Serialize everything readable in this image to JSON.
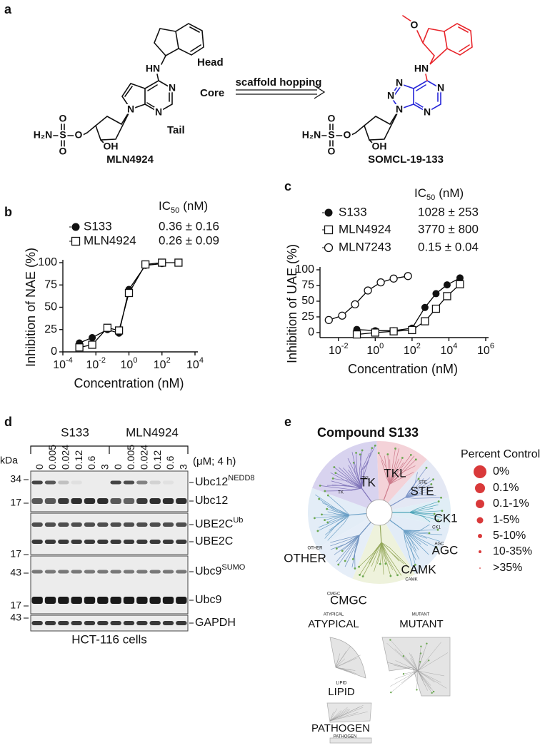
{
  "panel_labels": [
    "a",
    "b",
    "c",
    "d",
    "e"
  ],
  "scheme": {
    "regions": {
      "head": "Head",
      "core": "Core",
      "tail": "Tail"
    },
    "arrow_label": "scaffold hopping",
    "left": {
      "name": "MLN4924",
      "atoms": [
        "HN",
        "N",
        "N",
        "N",
        "O",
        "S",
        "O",
        "O",
        "H₂N",
        "OH"
      ]
    },
    "right": {
      "name": "SOMCL-19-133",
      "atoms": [
        "O",
        "HN",
        "N",
        "N",
        "N",
        "N",
        "N",
        "O",
        "S",
        "O",
        "O",
        "H₂N",
        "OH"
      ]
    }
  },
  "chart_data": [
    {
      "type": "scatter",
      "x_label": "Concentration (nM)",
      "y_label": "Inhibition of NAE (%)",
      "legend_title": {
        "text": "IC",
        "sub": "50",
        "suffix": "(nM)"
      },
      "xscale": "log",
      "xlim": [
        0.0001,
        10000
      ],
      "xticks": [
        {
          "value": 0.0001,
          "label": "10-4"
        },
        {
          "value": 0.01,
          "label": "10-2"
        },
        {
          "value": 1,
          "label": "100"
        },
        {
          "value": 100,
          "label": "102"
        },
        {
          "value": 10000,
          "label": "104"
        }
      ],
      "ylim": [
        0,
        100
      ],
      "yticks": [
        0,
        25,
        50,
        75,
        100
      ],
      "series": [
        {
          "name": "S133",
          "ic50": "0.36 ± 0.16",
          "marker": "filled-circle",
          "color": "#000000",
          "x": [
            0.001,
            0.006,
            0.05,
            0.25,
            1,
            10,
            100
          ],
          "values": [
            10,
            16,
            25,
            21,
            70,
            97,
            99
          ]
        },
        {
          "name": "MLN4924",
          "ic50": "0.26 ± 0.09",
          "marker": "open-square",
          "color": "#000000",
          "x": [
            0.001,
            0.006,
            0.05,
            0.25,
            1,
            10,
            100,
            1000
          ],
          "values": [
            5,
            8,
            27,
            24,
            66,
            98,
            100,
            100
          ]
        }
      ]
    },
    {
      "type": "scatter",
      "x_label": "Concentration (nM)",
      "y_label": "Inhibition of UAE (%)",
      "legend_title": {
        "text": "IC",
        "sub": "50",
        "suffix": "(nM)"
      },
      "xscale": "log",
      "xlim": [
        0.001,
        1000000
      ],
      "xticks": [
        {
          "value": 0.01,
          "label": "10-2"
        },
        {
          "value": 1,
          "label": "100"
        },
        {
          "value": 100,
          "label": "102"
        },
        {
          "value": 10000,
          "label": "104"
        },
        {
          "value": 1000000,
          "label": "106"
        }
      ],
      "ylim": [
        -8,
        100
      ],
      "yticks": [
        0,
        25,
        50,
        75,
        100
      ],
      "series": [
        {
          "name": "S133",
          "ic50": "1028 ± 253",
          "marker": "filled-circle",
          "color": "#000000",
          "x": [
            0.1,
            1,
            10,
            100,
            500,
            2000,
            8000,
            40000
          ],
          "values": [
            5,
            3,
            3,
            7,
            40,
            62,
            76,
            87
          ]
        },
        {
          "name": "MLN4924",
          "ic50": "3770 ± 800",
          "marker": "open-square",
          "color": "#000000",
          "x": [
            0.1,
            1,
            10,
            100,
            500,
            2000,
            8000,
            40000
          ],
          "values": [
            -3,
            0,
            2,
            4,
            18,
            38,
            58,
            77
          ]
        },
        {
          "name": "MLN7243",
          "ic50": "0.15 ± 0.04",
          "marker": "open-circle",
          "color": "#000000",
          "x": [
            0.003,
            0.016,
            0.08,
            0.4,
            2,
            10,
            60
          ],
          "values": [
            20,
            27,
            45,
            67,
            80,
            86,
            90
          ]
        }
      ]
    }
  ],
  "blot": {
    "groups": [
      "S133",
      "MLN4924"
    ],
    "doses": [
      "0",
      "0.005",
      "0.024",
      "0.12",
      "0.6",
      "3"
    ],
    "dose_unit": "(μM; 4 h)",
    "kda_label": "kDa",
    "markers": [
      "34",
      "17",
      "17",
      "43",
      "17",
      "43"
    ],
    "bands": [
      {
        "text": "Ubc12",
        "sup": "NEDD8"
      },
      {
        "text": "Ubc12"
      },
      {
        "text": "UBE2C",
        "sup": "Ub"
      },
      {
        "text": "UBE2C"
      },
      {
        "text": "Ubc9",
        "sup": "SUMO"
      },
      {
        "text": "Ubc9"
      },
      {
        "text": "GAPDH"
      }
    ],
    "cell_line": "HCT-116 cells"
  },
  "kinome": {
    "title": "Compound S133",
    "groups": [
      {
        "label": "TK",
        "small": "TK"
      },
      {
        "label": "TKL",
        "small": "TKL"
      },
      {
        "label": "STE",
        "small": "STE"
      },
      {
        "label": "CK1",
        "small": "CK1"
      },
      {
        "label": "AGC",
        "small": "AGC"
      },
      {
        "label": "CAMK",
        "small": "CAMK"
      },
      {
        "label": "CMGC",
        "small": "CMGC"
      },
      {
        "label": "OTHER",
        "small": "OTHER"
      }
    ],
    "others": [
      {
        "label": "ATYPICAL",
        "small": "ATYPICAL"
      },
      {
        "label": "MUTANT",
        "small": "MUTANT"
      },
      {
        "label": "LIPID",
        "small": "LIPID"
      },
      {
        "label": "PATHOGEN",
        "small": "PATHOGEN"
      }
    ],
    "legend_title": "Percent Control",
    "legend": [
      "0%",
      "0.1%",
      "0.1-1%",
      "1-5%",
      "5-10%",
      "10-35%",
      ">35%"
    ],
    "legend_color": "#d9393a"
  }
}
